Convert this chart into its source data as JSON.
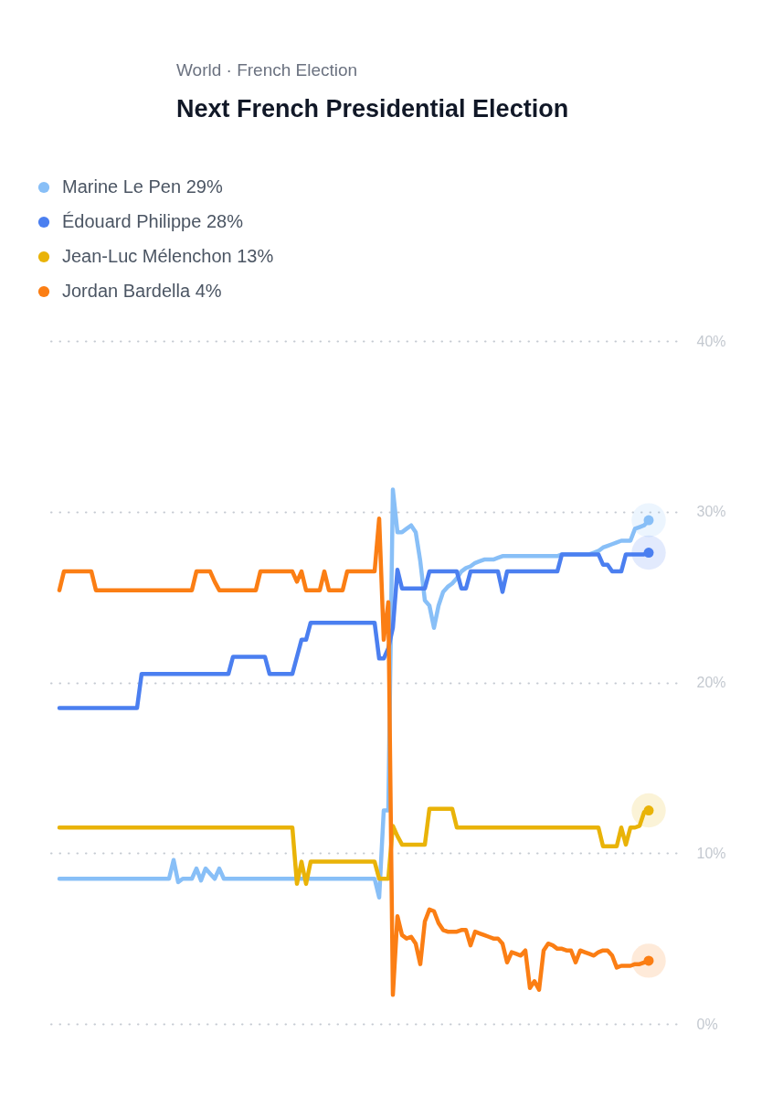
{
  "chart_data": {
    "type": "line",
    "subtitle": "World · French Election",
    "title": "Next French Presidential Election",
    "categories": [
      null,
      null,
      null,
      null,
      null,
      null,
      null,
      null,
      null,
      null,
      null,
      null,
      null,
      null,
      null,
      null,
      null,
      null,
      null,
      null,
      null,
      null,
      null,
      null,
      null,
      null,
      null,
      null,
      null,
      null,
      null,
      null,
      null,
      null,
      null,
      null,
      null,
      null,
      null,
      null,
      null,
      null,
      null,
      null,
      null,
      null,
      null,
      null,
      null,
      null,
      null,
      null,
      null,
      null,
      null,
      null,
      null,
      null,
      null,
      null,
      null,
      null,
      null,
      null,
      null,
      null,
      null,
      null,
      null,
      null,
      null,
      null,
      null,
      null,
      null,
      null,
      null,
      null,
      null,
      null,
      null,
      null,
      null,
      null,
      null,
      null,
      null,
      null,
      null,
      null,
      null,
      null,
      null,
      null,
      null,
      null,
      null,
      null,
      null,
      null,
      null,
      null,
      null,
      null,
      null,
      null,
      null,
      null,
      null,
      null,
      null,
      null,
      null,
      null,
      null,
      null,
      null,
      null,
      null,
      null,
      null,
      null,
      null,
      null,
      null,
      null,
      null,
      null,
      null,
      null
    ],
    "series": [
      {
        "name": "Marine Le Pen 29%",
        "color": "#88bff7",
        "values": [
          8.5,
          8.5,
          8.5,
          8.5,
          8.5,
          8.5,
          8.5,
          8.5,
          8.5,
          8.5,
          8.5,
          8.5,
          8.5,
          8.5,
          8.5,
          8.5,
          8.5,
          8.5,
          8.5,
          8.5,
          8.5,
          8.5,
          8.5,
          8.5,
          8.5,
          9.6,
          8.3,
          8.5,
          8.5,
          8.5,
          9.1,
          8.4,
          9.1,
          8.8,
          8.5,
          9.1,
          8.5,
          8.5,
          8.5,
          8.5,
          8.5,
          8.5,
          8.5,
          8.5,
          8.5,
          8.5,
          8.5,
          8.5,
          8.5,
          8.5,
          8.5,
          8.5,
          8.5,
          8.5,
          8.5,
          8.5,
          8.5,
          8.5,
          8.5,
          8.5,
          8.5,
          8.5,
          8.5,
          8.5,
          8.5,
          8.5,
          8.5,
          8.5,
          8.5,
          8.5,
          7.4,
          12.5,
          12.5,
          31.3,
          28.8,
          28.8,
          29.0,
          29.2,
          28.8,
          27.1,
          24.8,
          24.5,
          23.2,
          24.5,
          25.3,
          25.6,
          25.8,
          26.1,
          26.5,
          26.7,
          26.8,
          27.0,
          27.1,
          27.2,
          27.2,
          27.2,
          27.3,
          27.4,
          27.4,
          27.4,
          27.4,
          27.4,
          27.4,
          27.4,
          27.4,
          27.4,
          27.4,
          27.4,
          27.4,
          27.4,
          27.5,
          27.5,
          27.5,
          27.5,
          27.5,
          27.5,
          27.5,
          27.6,
          27.7,
          27.9,
          28.0,
          28.1,
          28.2,
          28.3,
          28.3,
          28.3,
          29.0,
          29.1,
          29.2,
          29.5
        ]
      },
      {
        "name": "Édouard Philippe 28%",
        "color": "#4b7ff0",
        "values": [
          18.5,
          18.5,
          18.5,
          18.5,
          18.5,
          18.5,
          18.5,
          18.5,
          18.5,
          18.5,
          18.5,
          18.5,
          18.5,
          18.5,
          18.5,
          18.5,
          18.5,
          18.5,
          20.5,
          20.5,
          20.5,
          20.5,
          20.5,
          20.5,
          20.5,
          20.5,
          20.5,
          20.5,
          20.5,
          20.5,
          20.5,
          20.5,
          20.5,
          20.5,
          20.5,
          20.5,
          20.5,
          20.5,
          21.5,
          21.5,
          21.5,
          21.5,
          21.5,
          21.5,
          21.5,
          21.5,
          20.5,
          20.5,
          20.5,
          20.5,
          20.5,
          20.5,
          21.5,
          22.5,
          22.5,
          23.5,
          23.5,
          23.5,
          23.5,
          23.5,
          23.5,
          23.5,
          23.5,
          23.5,
          23.5,
          23.5,
          23.5,
          23.5,
          23.5,
          23.5,
          21.4,
          21.4,
          22.0,
          23.2,
          26.6,
          25.5,
          25.5,
          25.5,
          25.5,
          25.5,
          25.5,
          26.5,
          26.5,
          26.5,
          26.5,
          26.5,
          26.5,
          26.5,
          25.5,
          25.5,
          26.5,
          26.5,
          26.5,
          26.5,
          26.5,
          26.5,
          26.5,
          25.3,
          26.5,
          26.5,
          26.5,
          26.5,
          26.5,
          26.5,
          26.5,
          26.5,
          26.5,
          26.5,
          26.5,
          26.5,
          27.5,
          27.5,
          27.5,
          27.5,
          27.5,
          27.5,
          27.5,
          27.5,
          27.5,
          26.9,
          26.9,
          26.5,
          26.5,
          26.5,
          27.5,
          27.5,
          27.5,
          27.5,
          27.5,
          27.6
        ]
      },
      {
        "name": "Jean-Luc Mélenchon 13%",
        "color": "#e9b308",
        "values": [
          11.5,
          11.5,
          11.5,
          11.5,
          11.5,
          11.5,
          11.5,
          11.5,
          11.5,
          11.5,
          11.5,
          11.5,
          11.5,
          11.5,
          11.5,
          11.5,
          11.5,
          11.5,
          11.5,
          11.5,
          11.5,
          11.5,
          11.5,
          11.5,
          11.5,
          11.5,
          11.5,
          11.5,
          11.5,
          11.5,
          11.5,
          11.5,
          11.5,
          11.5,
          11.5,
          11.5,
          11.5,
          11.5,
          11.5,
          11.5,
          11.5,
          11.5,
          11.5,
          11.5,
          11.5,
          11.5,
          11.5,
          11.5,
          11.5,
          11.5,
          11.5,
          11.5,
          8.2,
          9.5,
          8.2,
          9.5,
          9.5,
          9.5,
          9.5,
          9.5,
          9.5,
          9.5,
          9.5,
          9.5,
          9.5,
          9.5,
          9.5,
          9.5,
          9.5,
          9.5,
          8.5,
          8.5,
          8.5,
          11.6,
          11.0,
          10.5,
          10.5,
          10.5,
          10.5,
          10.5,
          10.5,
          12.6,
          12.6,
          12.6,
          12.6,
          12.6,
          12.6,
          11.5,
          11.5,
          11.5,
          11.5,
          11.5,
          11.5,
          11.5,
          11.5,
          11.5,
          11.5,
          11.5,
          11.5,
          11.5,
          11.5,
          11.5,
          11.5,
          11.5,
          11.5,
          11.5,
          11.5,
          11.5,
          11.5,
          11.5,
          11.5,
          11.5,
          11.5,
          11.5,
          11.5,
          11.5,
          11.5,
          11.5,
          11.5,
          10.4,
          10.4,
          10.4,
          10.4,
          11.5,
          10.5,
          11.5,
          11.5,
          11.6,
          12.4,
          12.5
        ]
      },
      {
        "name": "Jordan Bardella 4%",
        "color": "#fb7e14",
        "values": [
          25.4,
          26.5,
          26.5,
          26.5,
          26.5,
          26.5,
          26.5,
          26.5,
          25.4,
          25.4,
          25.4,
          25.4,
          25.4,
          25.4,
          25.4,
          25.4,
          25.4,
          25.4,
          25.4,
          25.4,
          25.4,
          25.4,
          25.4,
          25.4,
          25.4,
          25.4,
          25.4,
          25.4,
          25.4,
          25.4,
          26.5,
          26.5,
          26.5,
          26.5,
          25.9,
          25.4,
          25.4,
          25.4,
          25.4,
          25.4,
          25.4,
          25.4,
          25.4,
          25.4,
          26.5,
          26.5,
          26.5,
          26.5,
          26.5,
          26.5,
          26.5,
          26.5,
          25.9,
          26.5,
          25.4,
          25.4,
          25.4,
          25.4,
          26.5,
          25.4,
          25.4,
          25.4,
          25.4,
          26.5,
          26.5,
          26.5,
          26.5,
          26.5,
          26.5,
          26.5,
          29.6,
          22.5,
          24.7,
          1.7,
          6.3,
          5.2,
          5.0,
          5.1,
          4.7,
          3.5,
          6.0,
          6.7,
          6.6,
          5.9,
          5.5,
          5.4,
          5.4,
          5.4,
          5.5,
          5.5,
          4.6,
          5.4,
          5.3,
          5.2,
          5.1,
          5.0,
          5.0,
          4.7,
          3.6,
          4.2,
          4.1,
          4.0,
          4.3,
          2.1,
          2.5,
          2.0,
          4.3,
          4.7,
          4.6,
          4.4,
          4.4,
          4.3,
          4.3,
          3.6,
          4.3,
          4.2,
          4.1,
          4.0,
          4.2,
          4.3,
          4.3,
          4.0,
          3.3,
          3.4,
          3.4,
          3.4,
          3.5,
          3.5,
          3.6,
          3.7
        ]
      }
    ],
    "ylim": [
      0,
      40
    ],
    "yticks": [
      {
        "value": 0,
        "label": "0%"
      },
      {
        "value": 10,
        "label": "10%"
      },
      {
        "value": 20,
        "label": "20%"
      },
      {
        "value": 30,
        "label": "30%"
      },
      {
        "value": 40,
        "label": "40%"
      }
    ],
    "grid": "y",
    "tick_labels": "y",
    "legend": "top left",
    "line_style": "solid"
  }
}
